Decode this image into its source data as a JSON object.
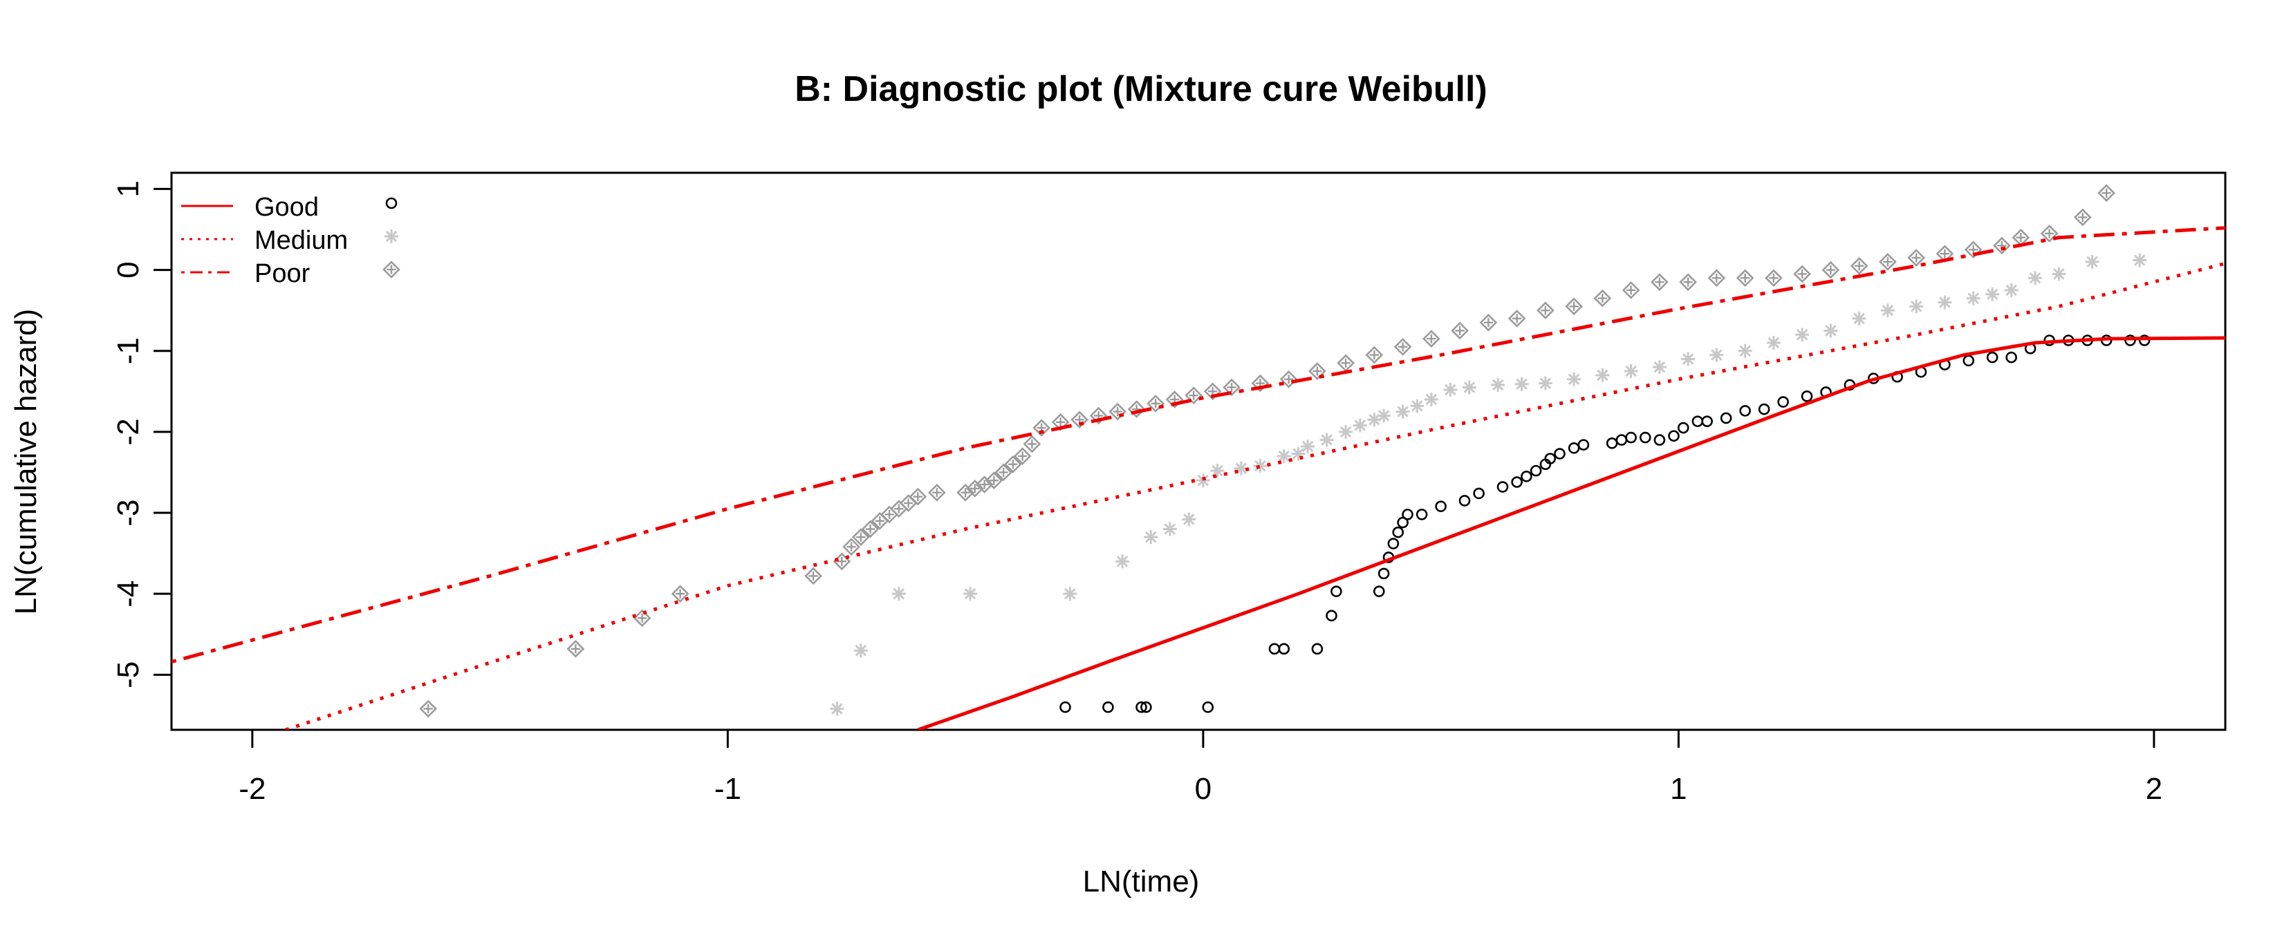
{
  "chart_data": {
    "type": "scatter",
    "title": "B: Diagnostic plot (Mixture cure Weibull)",
    "xlabel": "LN(time)",
    "ylabel": "LN(cumulative hazard)",
    "xlim": [
      -2.17,
      2.15
    ],
    "ylim": [
      -5.68,
      1.2
    ],
    "x_ticks": [
      -2,
      -1,
      0,
      1,
      2
    ],
    "y_ticks": [
      -5,
      -4,
      -3,
      -2,
      -1,
      0,
      1
    ],
    "grid": false,
    "legend_position": "top-left",
    "colors": {
      "model_line": "#ee0000",
      "good_points": "#000000",
      "medium_points": "#c8c8c8",
      "poor_points": "#9b9b9b"
    },
    "series": [
      {
        "name": "Good",
        "line_style": "solid",
        "marker": "circle",
        "fit_curve": {
          "x": [
            -0.6,
            -0.4,
            -0.2,
            0.0,
            0.2,
            0.4,
            0.6,
            0.8,
            1.0,
            1.2,
            1.4,
            1.6,
            1.75,
            1.9,
            2.15
          ],
          "y": [
            -5.68,
            -5.27,
            -4.84,
            -4.42,
            -4.0,
            -3.56,
            -3.12,
            -2.68,
            -2.24,
            -1.8,
            -1.37,
            -1.05,
            -0.9,
            -0.85,
            -0.84
          ]
        },
        "points": {
          "x": [
            -0.29,
            -0.2,
            -0.13,
            -0.12,
            0.01,
            0.15,
            0.17,
            0.24,
            0.27,
            0.28,
            0.37,
            0.38,
            0.39,
            0.4,
            0.41,
            0.42,
            0.43,
            0.46,
            0.5,
            0.55,
            0.58,
            0.63,
            0.66,
            0.68,
            0.7,
            0.72,
            0.73,
            0.75,
            0.78,
            0.8,
            0.86,
            0.88,
            0.9,
            0.93,
            0.96,
            0.99,
            1.01,
            1.04,
            1.06,
            1.1,
            1.14,
            1.18,
            1.22,
            1.27,
            1.31,
            1.36,
            1.41,
            1.46,
            1.51,
            1.56,
            1.61,
            1.66,
            1.7,
            1.74,
            1.78,
            1.82,
            1.86,
            1.9,
            1.95,
            1.98
          ],
          "y": [
            -5.4,
            -5.4,
            -5.4,
            -5.4,
            -5.4,
            -4.68,
            -4.68,
            -4.68,
            -4.27,
            -3.97,
            -3.97,
            -3.75,
            -3.55,
            -3.38,
            -3.24,
            -3.12,
            -3.02,
            -3.02,
            -2.92,
            -2.85,
            -2.76,
            -2.68,
            -2.62,
            -2.55,
            -2.48,
            -2.4,
            -2.33,
            -2.27,
            -2.2,
            -2.16,
            -2.14,
            -2.1,
            -2.07,
            -2.07,
            -2.1,
            -2.05,
            -1.95,
            -1.87,
            -1.87,
            -1.83,
            -1.74,
            -1.72,
            -1.63,
            -1.56,
            -1.51,
            -1.42,
            -1.34,
            -1.32,
            -1.26,
            -1.17,
            -1.12,
            -1.08,
            -1.08,
            -0.97,
            -0.87,
            -0.87,
            -0.87,
            -0.87,
            -0.87,
            -0.87
          ]
        }
      },
      {
        "name": "Medium",
        "line_style": "dotted",
        "marker": "asterisk",
        "fit_curve": {
          "x": [
            -1.93,
            -1.5,
            -1.0,
            -0.5,
            0.0,
            0.5,
            1.0,
            1.5,
            1.8,
            2.15
          ],
          "y": [
            -5.68,
            -4.85,
            -3.9,
            -3.2,
            -2.58,
            -1.95,
            -1.35,
            -0.8,
            -0.45,
            0.08
          ]
        },
        "points": {
          "x": [
            -0.77,
            -0.72,
            -0.64,
            -0.49,
            -0.28,
            -0.17,
            -0.11,
            -0.07,
            -0.03,
            0.0,
            0.03,
            0.08,
            0.12,
            0.17,
            0.2,
            0.22,
            0.26,
            0.3,
            0.33,
            0.36,
            0.38,
            0.42,
            0.45,
            0.48,
            0.52,
            0.56,
            0.62,
            0.67,
            0.72,
            0.78,
            0.84,
            0.9,
            0.96,
            1.02,
            1.08,
            1.14,
            1.2,
            1.26,
            1.32,
            1.38,
            1.44,
            1.5,
            1.56,
            1.62,
            1.66,
            1.7,
            1.75,
            1.8,
            1.87,
            1.97
          ],
          "y": [
            -5.42,
            -4.7,
            -4.0,
            -4.0,
            -4.0,
            -3.6,
            -3.3,
            -3.2,
            -3.08,
            -2.6,
            -2.48,
            -2.45,
            -2.42,
            -2.3,
            -2.27,
            -2.18,
            -2.1,
            -2.0,
            -1.92,
            -1.85,
            -1.8,
            -1.75,
            -1.68,
            -1.6,
            -1.48,
            -1.45,
            -1.42,
            -1.41,
            -1.4,
            -1.35,
            -1.3,
            -1.25,
            -1.2,
            -1.1,
            -1.05,
            -1.0,
            -0.9,
            -0.8,
            -0.75,
            -0.6,
            -0.5,
            -0.45,
            -0.4,
            -0.35,
            -0.3,
            -0.25,
            -0.1,
            -0.05,
            0.1,
            0.12
          ]
        }
      },
      {
        "name": "Poor",
        "line_style": "dotdash",
        "marker": "diamond-plus",
        "fit_curve": {
          "x": [
            -2.17,
            -1.5,
            -1.0,
            -0.5,
            0.0,
            0.5,
            1.0,
            1.5,
            1.8,
            2.15
          ],
          "y": [
            -4.84,
            -3.78,
            -2.95,
            -2.2,
            -1.58,
            -1.05,
            -0.48,
            0.05,
            0.4,
            0.52
          ]
        },
        "points": {
          "x": [
            -1.63,
            -1.32,
            -1.18,
            -1.1,
            -0.82,
            -0.76,
            -0.74,
            -0.72,
            -0.7,
            -0.68,
            -0.66,
            -0.64,
            -0.62,
            -0.6,
            -0.56,
            -0.5,
            -0.48,
            -0.46,
            -0.44,
            -0.42,
            -0.4,
            -0.38,
            -0.36,
            -0.34,
            -0.3,
            -0.26,
            -0.22,
            -0.18,
            -0.14,
            -0.1,
            -0.06,
            -0.02,
            0.02,
            0.06,
            0.12,
            0.18,
            0.24,
            0.3,
            0.36,
            0.42,
            0.48,
            0.54,
            0.6,
            0.66,
            0.72,
            0.78,
            0.84,
            0.9,
            0.96,
            1.02,
            1.08,
            1.14,
            1.2,
            1.26,
            1.32,
            1.38,
            1.44,
            1.5,
            1.56,
            1.62,
            1.68,
            1.72,
            1.78,
            1.85,
            1.9
          ],
          "y": [
            -5.42,
            -4.68,
            -4.3,
            -4.0,
            -3.78,
            -3.6,
            -3.42,
            -3.3,
            -3.2,
            -3.1,
            -3.02,
            -2.95,
            -2.88,
            -2.8,
            -2.75,
            -2.75,
            -2.7,
            -2.65,
            -2.6,
            -2.5,
            -2.4,
            -2.3,
            -2.15,
            -1.95,
            -1.88,
            -1.85,
            -1.8,
            -1.75,
            -1.72,
            -1.65,
            -1.6,
            -1.55,
            -1.5,
            -1.45,
            -1.4,
            -1.35,
            -1.25,
            -1.15,
            -1.05,
            -0.95,
            -0.85,
            -0.75,
            -0.65,
            -0.6,
            -0.5,
            -0.45,
            -0.35,
            -0.25,
            -0.15,
            -0.15,
            -0.1,
            -0.1,
            -0.1,
            -0.05,
            0.0,
            0.05,
            0.1,
            0.15,
            0.2,
            0.25,
            0.3,
            0.4,
            0.45,
            0.65,
            0.95
          ]
        }
      }
    ]
  }
}
